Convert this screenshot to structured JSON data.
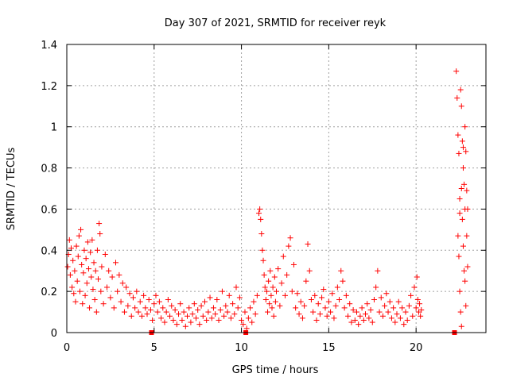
{
  "chart_data": {
    "type": "scatter",
    "title": "Day 307 of 2021, SRMTID for receiver reyk",
    "xlabel": "GPS time / hours",
    "ylabel": "SRMTID / TECUs",
    "xlim": [
      0,
      24
    ],
    "ylim": [
      0,
      1.4
    ],
    "xticks": [
      0,
      5,
      10,
      15,
      20
    ],
    "yticks": [
      0,
      0.2,
      0.4,
      0.6,
      0.8,
      1,
      1.2,
      1.4
    ],
    "ytick_labels": [
      "0",
      "0.2",
      "0.4",
      "0.6",
      "0.8",
      "1",
      "1.2",
      "1.4"
    ],
    "grid": true,
    "marker": "+",
    "color": "#ff0000",
    "series": [
      {
        "name": "SRMTID",
        "points": [
          [
            0.05,
            0.32
          ],
          [
            0.1,
            0.38
          ],
          [
            0.15,
            0.45
          ],
          [
            0.2,
            0.28
          ],
          [
            0.25,
            0.41
          ],
          [
            0.3,
            0.22
          ],
          [
            0.35,
            0.35
          ],
          [
            0.4,
            0.19
          ],
          [
            0.45,
            0.3
          ],
          [
            0.5,
            0.15
          ],
          [
            0.55,
            0.42
          ],
          [
            0.6,
            0.25
          ],
          [
            0.65,
            0.37
          ],
          [
            0.7,
            0.47
          ],
          [
            0.75,
            0.2
          ],
          [
            0.8,
            0.5
          ],
          [
            0.85,
            0.33
          ],
          [
            0.9,
            0.14
          ],
          [
            0.95,
            0.29
          ],
          [
            1.0,
            0.4
          ],
          [
            1.05,
            0.18
          ],
          [
            1.1,
            0.36
          ],
          [
            1.15,
            0.24
          ],
          [
            1.2,
            0.44
          ],
          [
            1.25,
            0.31
          ],
          [
            1.3,
            0.12
          ],
          [
            1.35,
            0.39
          ],
          [
            1.4,
            0.27
          ],
          [
            1.45,
            0.45
          ],
          [
            1.5,
            0.21
          ],
          [
            1.55,
            0.34
          ],
          [
            1.6,
            0.16
          ],
          [
            1.65,
            0.3
          ],
          [
            1.7,
            0.1
          ],
          [
            1.75,
            0.4
          ],
          [
            1.8,
            0.26
          ],
          [
            1.85,
            0.53
          ],
          [
            1.9,
            0.48
          ],
          [
            1.95,
            0.2
          ],
          [
            2.0,
            0.32
          ],
          [
            2.1,
            0.14
          ],
          [
            2.2,
            0.38
          ],
          [
            2.3,
            0.22
          ],
          [
            2.4,
            0.3
          ],
          [
            2.5,
            0.17
          ],
          [
            2.6,
            0.27
          ],
          [
            2.7,
            0.12
          ],
          [
            2.8,
            0.34
          ],
          [
            2.9,
            0.2
          ],
          [
            3.0,
            0.28
          ],
          [
            3.1,
            0.15
          ],
          [
            3.2,
            0.24
          ],
          [
            3.3,
            0.1
          ],
          [
            3.4,
            0.22
          ],
          [
            3.5,
            0.13
          ],
          [
            3.6,
            0.19
          ],
          [
            3.7,
            0.08
          ],
          [
            3.8,
            0.17
          ],
          [
            3.9,
            0.12
          ],
          [
            4.0,
            0.2
          ],
          [
            4.1,
            0.1
          ],
          [
            4.2,
            0.15
          ],
          [
            4.3,
            0.08
          ],
          [
            4.4,
            0.18
          ],
          [
            4.5,
            0.12
          ],
          [
            4.6,
            0.09
          ],
          [
            4.7,
            0.16
          ],
          [
            4.8,
            0.11
          ],
          [
            4.9,
            0.06
          ],
          [
            5.0,
            0.14
          ],
          [
            5.1,
            0.18
          ],
          [
            5.2,
            0.1
          ],
          [
            5.3,
            0.15
          ],
          [
            5.4,
            0.07
          ],
          [
            5.5,
            0.12
          ],
          [
            5.6,
            0.05
          ],
          [
            5.7,
            0.1
          ],
          [
            5.8,
            0.16
          ],
          [
            5.9,
            0.08
          ],
          [
            6.0,
            0.13
          ],
          [
            6.1,
            0.06
          ],
          [
            6.2,
            0.11
          ],
          [
            6.3,
            0.04
          ],
          [
            6.4,
            0.09
          ],
          [
            6.5,
            0.14
          ],
          [
            6.6,
            0.06
          ],
          [
            6.7,
            0.1
          ],
          [
            6.8,
            0.03
          ],
          [
            6.9,
            0.08
          ],
          [
            7.0,
            0.12
          ],
          [
            7.1,
            0.05
          ],
          [
            7.2,
            0.09
          ],
          [
            7.3,
            0.14
          ],
          [
            7.4,
            0.07
          ],
          [
            7.5,
            0.11
          ],
          [
            7.6,
            0.04
          ],
          [
            7.7,
            0.13
          ],
          [
            7.8,
            0.08
          ],
          [
            7.9,
            0.15
          ],
          [
            8.0,
            0.06
          ],
          [
            8.1,
            0.1
          ],
          [
            8.2,
            0.17
          ],
          [
            8.3,
            0.07
          ],
          [
            8.4,
            0.12
          ],
          [
            8.5,
            0.09
          ],
          [
            8.6,
            0.16
          ],
          [
            8.7,
            0.06
          ],
          [
            8.8,
            0.11
          ],
          [
            8.9,
            0.2
          ],
          [
            9.0,
            0.08
          ],
          [
            9.1,
            0.13
          ],
          [
            9.2,
            0.1
          ],
          [
            9.3,
            0.18
          ],
          [
            9.4,
            0.07
          ],
          [
            9.5,
            0.14
          ],
          [
            9.6,
            0.09
          ],
          [
            9.7,
            0.22
          ],
          [
            9.8,
            0.12
          ],
          [
            9.9,
            0.17
          ],
          [
            10.0,
            0.06
          ],
          [
            10.1,
            0.04
          ],
          [
            10.2,
            0.1
          ],
          [
            10.3,
            0.02
          ],
          [
            10.4,
            0.07
          ],
          [
            10.5,
            0.12
          ],
          [
            10.6,
            0.05
          ],
          [
            10.7,
            0.15
          ],
          [
            10.8,
            0.09
          ],
          [
            10.9,
            0.18
          ],
          [
            11.0,
            0.58
          ],
          [
            11.05,
            0.6
          ],
          [
            11.1,
            0.55
          ],
          [
            11.15,
            0.48
          ],
          [
            11.2,
            0.4
          ],
          [
            11.25,
            0.35
          ],
          [
            11.3,
            0.28
          ],
          [
            11.35,
            0.22
          ],
          [
            11.4,
            0.16
          ],
          [
            11.45,
            0.2
          ],
          [
            11.5,
            0.1
          ],
          [
            11.55,
            0.25
          ],
          [
            11.6,
            0.14
          ],
          [
            11.65,
            0.3
          ],
          [
            11.7,
            0.18
          ],
          [
            11.75,
            0.12
          ],
          [
            11.8,
            0.22
          ],
          [
            11.85,
            0.08
          ],
          [
            11.9,
            0.27
          ],
          [
            11.95,
            0.15
          ],
          [
            12.0,
            0.2
          ],
          [
            12.1,
            0.31
          ],
          [
            12.2,
            0.13
          ],
          [
            12.3,
            0.24
          ],
          [
            12.4,
            0.37
          ],
          [
            12.5,
            0.18
          ],
          [
            12.6,
            0.28
          ],
          [
            12.7,
            0.42
          ],
          [
            12.8,
            0.46
          ],
          [
            12.9,
            0.2
          ],
          [
            13.0,
            0.33
          ],
          [
            13.1,
            0.12
          ],
          [
            13.2,
            0.19
          ],
          [
            13.3,
            0.09
          ],
          [
            13.4,
            0.15
          ],
          [
            13.5,
            0.07
          ],
          [
            13.6,
            0.13
          ],
          [
            13.7,
            0.25
          ],
          [
            13.8,
            0.43
          ],
          [
            13.9,
            0.3
          ],
          [
            14.0,
            0.16
          ],
          [
            14.1,
            0.1
          ],
          [
            14.2,
            0.18
          ],
          [
            14.3,
            0.06
          ],
          [
            14.4,
            0.14
          ],
          [
            14.5,
            0.09
          ],
          [
            14.6,
            0.17
          ],
          [
            14.7,
            0.21
          ],
          [
            14.8,
            0.12
          ],
          [
            14.9,
            0.08
          ],
          [
            15.0,
            0.15
          ],
          [
            15.1,
            0.1
          ],
          [
            15.2,
            0.19
          ],
          [
            15.3,
            0.07
          ],
          [
            15.4,
            0.13
          ],
          [
            15.5,
            0.22
          ],
          [
            15.6,
            0.16
          ],
          [
            15.7,
            0.3
          ],
          [
            15.8,
            0.25
          ],
          [
            15.9,
            0.12
          ],
          [
            16.0,
            0.18
          ],
          [
            16.1,
            0.08
          ],
          [
            16.2,
            0.14
          ],
          [
            16.3,
            0.05
          ],
          [
            16.4,
            0.11
          ],
          [
            16.5,
            0.06
          ],
          [
            16.6,
            0.1
          ],
          [
            16.7,
            0.04
          ],
          [
            16.8,
            0.08
          ],
          [
            16.9,
            0.12
          ],
          [
            17.0,
            0.06
          ],
          [
            17.1,
            0.09
          ],
          [
            17.2,
            0.14
          ],
          [
            17.3,
            0.07
          ],
          [
            17.4,
            0.11
          ],
          [
            17.5,
            0.05
          ],
          [
            17.6,
            0.16
          ],
          [
            17.7,
            0.22
          ],
          [
            17.8,
            0.3
          ],
          [
            17.9,
            0.1
          ],
          [
            18.0,
            0.17
          ],
          [
            18.1,
            0.08
          ],
          [
            18.2,
            0.13
          ],
          [
            18.3,
            0.19
          ],
          [
            18.4,
            0.1
          ],
          [
            18.5,
            0.15
          ],
          [
            18.6,
            0.07
          ],
          [
            18.7,
            0.12
          ],
          [
            18.8,
            0.05
          ],
          [
            18.9,
            0.09
          ],
          [
            19.0,
            0.15
          ],
          [
            19.1,
            0.07
          ],
          [
            19.2,
            0.12
          ],
          [
            19.3,
            0.04
          ],
          [
            19.4,
            0.1
          ],
          [
            19.5,
            0.06
          ],
          [
            19.6,
            0.13
          ],
          [
            19.7,
            0.18
          ],
          [
            19.8,
            0.08
          ],
          [
            19.9,
            0.22
          ],
          [
            20.0,
            0.12
          ],
          [
            20.05,
            0.27
          ],
          [
            20.1,
            0.16
          ],
          [
            20.15,
            0.1
          ],
          [
            20.2,
            0.14
          ],
          [
            20.25,
            0.08
          ],
          [
            20.3,
            0.11
          ],
          [
            22.3,
            1.27
          ],
          [
            22.35,
            1.14
          ],
          [
            22.4,
            0.96
          ],
          [
            22.45,
            0.87
          ],
          [
            22.5,
            0.65
          ],
          [
            22.55,
            1.18
          ],
          [
            22.6,
            1.1
          ],
          [
            22.65,
            0.93
          ],
          [
            22.7,
            0.8
          ],
          [
            22.75,
            0.72
          ],
          [
            22.8,
            1.0
          ],
          [
            22.85,
            0.88
          ],
          [
            22.9,
            0.69
          ],
          [
            22.95,
            0.6
          ],
          [
            22.4,
            0.47
          ],
          [
            22.45,
            0.37
          ],
          [
            22.5,
            0.2
          ],
          [
            22.55,
            0.1
          ],
          [
            22.6,
            0.03
          ],
          [
            22.65,
            0.55
          ],
          [
            22.7,
            0.42
          ],
          [
            22.75,
            0.3
          ],
          [
            22.8,
            0.25
          ],
          [
            22.85,
            0.13
          ],
          [
            22.9,
            0.47
          ],
          [
            22.95,
            0.32
          ],
          [
            22.5,
            0.58
          ],
          [
            22.6,
            0.7
          ],
          [
            22.7,
            0.9
          ],
          [
            22.8,
            0.6
          ]
        ]
      }
    ]
  }
}
